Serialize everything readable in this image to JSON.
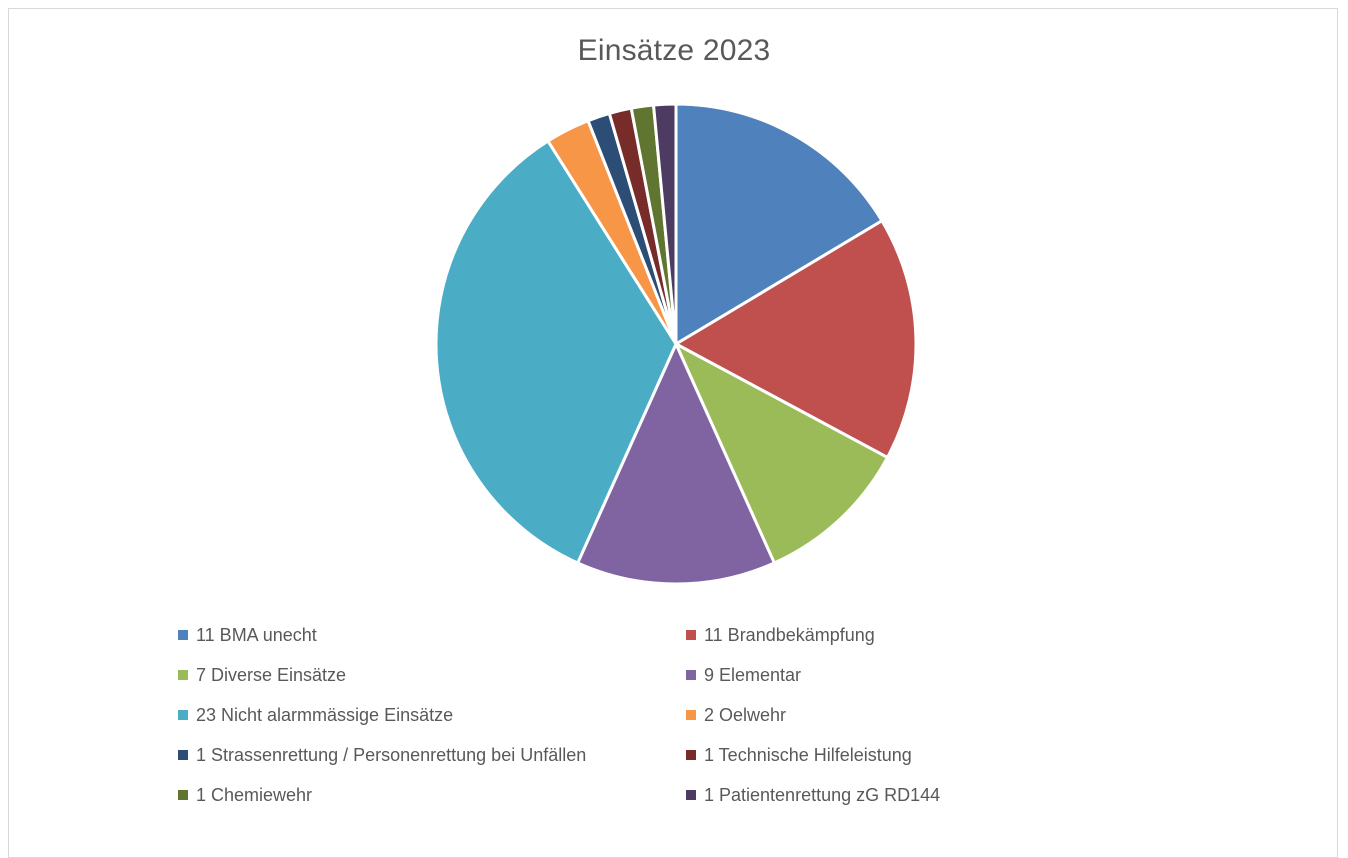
{
  "chart_data": {
    "type": "pie",
    "title": "Einsätze 2023",
    "legend_position": "bottom",
    "slices": [
      {
        "label": "11 BMA unecht",
        "value": 11,
        "color": "#4f81bd"
      },
      {
        "label": "11 Brandbekämpfung",
        "value": 11,
        "color": "#c0504d"
      },
      {
        "label": "7 Diverse Einsätze",
        "value": 7,
        "color": "#9bbb59"
      },
      {
        "label": "9 Elementar",
        "value": 9,
        "color": "#8064a2"
      },
      {
        "label": "23 Nicht alarmmässige Einsätze",
        "value": 23,
        "color": "#4bacc6"
      },
      {
        "label": "2 Oelwehr",
        "value": 2,
        "color": "#f79646"
      },
      {
        "label": "1 Strassenrettung / Personenrettung bei Unfällen",
        "value": 1,
        "color": "#2c4d75"
      },
      {
        "label": "1 Technische Hilfeleistung",
        "value": 1,
        "color": "#772c2a"
      },
      {
        "label": "1 Chemiewehr",
        "value": 1,
        "color": "#5f7530"
      },
      {
        "label": "1 Patientenrettung zG RD144",
        "value": 1,
        "color": "#4d3b62"
      }
    ]
  }
}
